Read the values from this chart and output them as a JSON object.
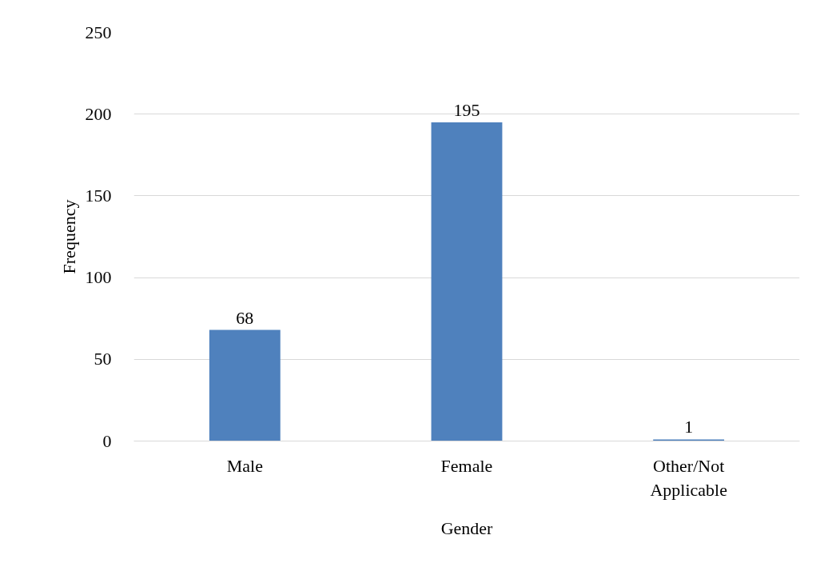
{
  "chart_data": {
    "type": "bar",
    "xlabel": "Gender",
    "ylabel": "Frequency",
    "categories": [
      "Male",
      "Female",
      "Other/Not\nApplicable"
    ],
    "values": [
      68,
      195,
      1
    ],
    "color": "#4f81bd",
    "ylim": [
      0,
      250
    ],
    "yticks": [
      0,
      50,
      100,
      150,
      200,
      250
    ],
    "grid": "y",
    "data_labels": true
  }
}
